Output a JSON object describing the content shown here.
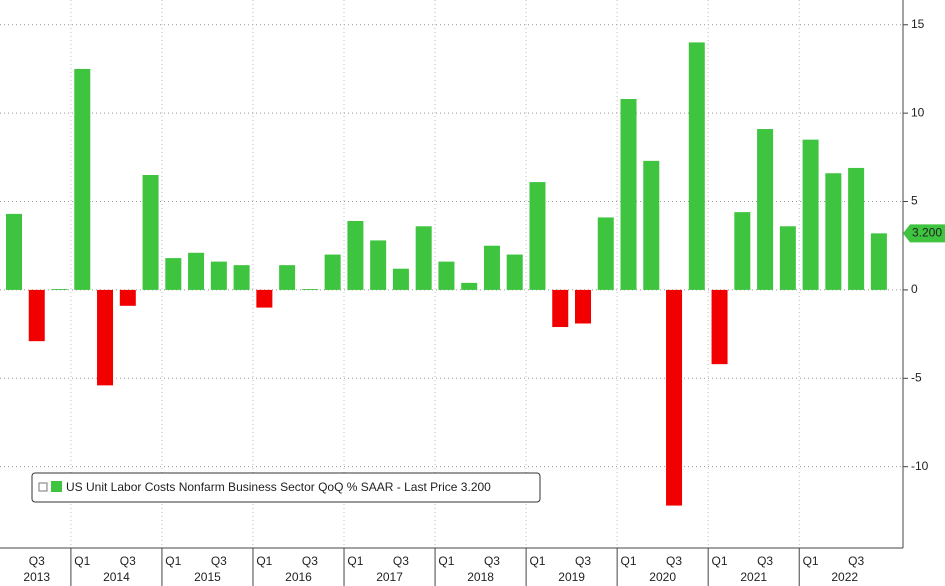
{
  "chart_data": {
    "type": "bar",
    "categories": [
      null,
      "Q3",
      null,
      "Q1",
      null,
      "Q3",
      null,
      "Q1",
      null,
      "Q3",
      null,
      "Q1",
      null,
      "Q3",
      null,
      "Q1",
      null,
      "Q3",
      null,
      "Q1",
      null,
      "Q3",
      null,
      "Q1",
      null,
      "Q3",
      null,
      "Q1",
      null,
      "Q3",
      null,
      "Q1",
      null,
      "Q3",
      null,
      "Q1",
      null,
      "Q3",
      null
    ],
    "years": [
      "2013",
      "2014",
      "2015",
      "2016",
      "2017",
      "2018",
      "2019",
      "2020",
      "2021",
      "2022"
    ],
    "series": [
      {
        "name": "US Unit Labor Costs Nonfarm Business Sector QoQ % SAAR - Last Price 3.200",
        "color": "#3ec43e",
        "negative_color": "#f20000",
        "values": [
          4.3,
          -2.9,
          0.05,
          12.5,
          -5.4,
          -0.9,
          6.5,
          1.8,
          2.1,
          1.6,
          1.4,
          -1.0,
          1.4,
          0.05,
          2.0,
          3.9,
          2.8,
          1.2,
          3.6,
          1.6,
          0.4,
          2.5,
          2.0,
          6.1,
          -2.1,
          -1.9,
          4.1,
          10.8,
          7.3,
          -12.2,
          14.0,
          -4.2,
          4.4,
          9.1,
          3.6,
          8.5,
          6.6,
          6.9,
          3.2
        ]
      }
    ],
    "last_price": {
      "value": 3.2,
      "label": "3.200"
    },
    "ylim": [
      -14.6,
      16.4
    ],
    "yticks": [
      15,
      10,
      5,
      0,
      -5,
      -10
    ],
    "grid": true
  }
}
